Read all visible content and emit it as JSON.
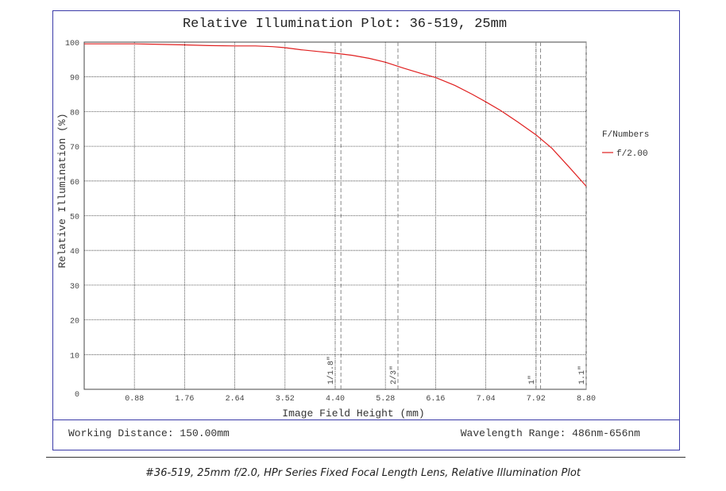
{
  "chart_data": {
    "type": "line",
    "title": "Relative Illumination Plot: 36-519, 25mm",
    "xlabel": "Image Field Height (mm)",
    "ylabel": "Relative Illumination (%)",
    "xlim": [
      0,
      8.8
    ],
    "ylim": [
      0,
      100
    ],
    "x_ticks": [
      "0.88",
      "1.76",
      "2.64",
      "3.52",
      "4.40",
      "5.28",
      "6.16",
      "7.04",
      "7.92",
      "8.80"
    ],
    "y_ticks": [
      "0",
      "10",
      "20",
      "30",
      "40",
      "50",
      "60",
      "70",
      "80",
      "90",
      "100"
    ],
    "grid": true,
    "legend": {
      "title": "F/Numbers",
      "placement": "right"
    },
    "series": [
      {
        "name": "f/2.00",
        "color": "#e02020",
        "x": [
          0,
          0.5,
          0.88,
          1.2,
          1.76,
          2.2,
          2.64,
          3.0,
          3.3,
          3.52,
          3.8,
          4.1,
          4.4,
          4.7,
          5.0,
          5.28,
          5.6,
          5.9,
          6.16,
          6.5,
          6.8,
          7.04,
          7.3,
          7.6,
          7.92,
          8.2,
          8.5,
          8.8
        ],
        "y": [
          99.5,
          99.5,
          99.5,
          99.4,
          99.2,
          99.0,
          98.9,
          98.9,
          98.7,
          98.4,
          97.8,
          97.3,
          96.8,
          96.2,
          95.3,
          94.2,
          92.5,
          91.0,
          89.8,
          87.5,
          85.0,
          82.8,
          80.3,
          77.0,
          73.3,
          69.4,
          64.0,
          58.5
        ]
      }
    ],
    "annotations": [
      {
        "label": "1/1.8\"",
        "x_lines": [
          4.4,
          4.5
        ]
      },
      {
        "label": "2/3\"",
        "x_lines": [
          5.5,
          5.5
        ]
      },
      {
        "label": "1\"",
        "x_lines": [
          7.92,
          8.0
        ]
      },
      {
        "label": "1.1\"",
        "x_lines": [
          8.8,
          8.8
        ]
      }
    ]
  },
  "footer": {
    "working_distance": "Working Distance: 150.00mm",
    "wavelength_range": "Wavelength Range: 486nm-656nm"
  },
  "caption": "#36-519, 25mm f/2.0, HPr Series Fixed Focal Length Lens, Relative Illumination Plot"
}
